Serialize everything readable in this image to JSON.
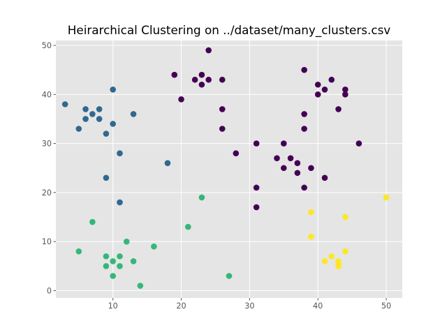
{
  "chart_data": {
    "type": "scatter",
    "title": "Heirarchical Clustering on ../dataset/many_clusters.csv",
    "xlabel": "",
    "ylabel": "",
    "xlim": [
      1.65,
      52.35
    ],
    "ylim": [
      -1.5,
      51.0
    ],
    "xticks": [
      10,
      20,
      30,
      40,
      50
    ],
    "yticks": [
      0,
      10,
      20,
      30,
      40,
      50
    ],
    "grid": true,
    "style": "ggplot",
    "background": "#e5e5e5",
    "series": [
      {
        "color": "#440154",
        "points": [
          [
            24,
            49
          ],
          [
            19,
            44
          ],
          [
            23,
            44
          ],
          [
            22,
            43
          ],
          [
            24,
            43
          ],
          [
            26,
            43
          ],
          [
            23,
            42
          ],
          [
            20,
            39
          ],
          [
            26,
            37
          ],
          [
            26,
            33
          ],
          [
            28,
            28
          ],
          [
            31,
            30
          ],
          [
            31,
            21
          ],
          [
            31,
            17
          ],
          [
            34,
            27
          ],
          [
            35,
            30
          ],
          [
            35,
            25
          ],
          [
            36,
            27
          ],
          [
            37,
            26
          ],
          [
            37,
            24
          ],
          [
            38,
            21
          ],
          [
            39,
            25
          ],
          [
            41,
            23
          ],
          [
            38,
            45
          ],
          [
            38,
            36
          ],
          [
            38,
            33
          ],
          [
            40,
            42
          ],
          [
            40,
            40
          ],
          [
            41,
            41
          ],
          [
            42,
            43
          ],
          [
            43,
            37
          ],
          [
            44,
            41
          ],
          [
            44,
            40
          ],
          [
            46,
            30
          ]
        ]
      },
      {
        "color": "#31688e",
        "points": [
          [
            3,
            38
          ],
          [
            5,
            33
          ],
          [
            6,
            37
          ],
          [
            6,
            35
          ],
          [
            7,
            36
          ],
          [
            8,
            37
          ],
          [
            8,
            35
          ],
          [
            9,
            32
          ],
          [
            10,
            41
          ],
          [
            10,
            34
          ],
          [
            13,
            36
          ],
          [
            11,
            28
          ],
          [
            18,
            26
          ],
          [
            9,
            23
          ],
          [
            11,
            18
          ]
        ]
      },
      {
        "color": "#35b779",
        "points": [
          [
            5,
            8
          ],
          [
            7,
            14
          ],
          [
            9,
            7
          ],
          [
            9,
            5
          ],
          [
            10,
            6
          ],
          [
            10,
            3
          ],
          [
            11,
            7
          ],
          [
            11,
            5
          ],
          [
            12,
            10
          ],
          [
            13,
            6
          ],
          [
            14,
            1
          ],
          [
            16,
            9
          ],
          [
            21,
            13
          ],
          [
            23,
            19
          ],
          [
            27,
            3
          ]
        ]
      },
      {
        "color": "#fde725",
        "points": [
          [
            39,
            16
          ],
          [
            39,
            11
          ],
          [
            41,
            6
          ],
          [
            42,
            7
          ],
          [
            43,
            6
          ],
          [
            43,
            5.5
          ],
          [
            43,
            5
          ],
          [
            44,
            15
          ],
          [
            44,
            8
          ],
          [
            50,
            19
          ]
        ]
      }
    ]
  }
}
